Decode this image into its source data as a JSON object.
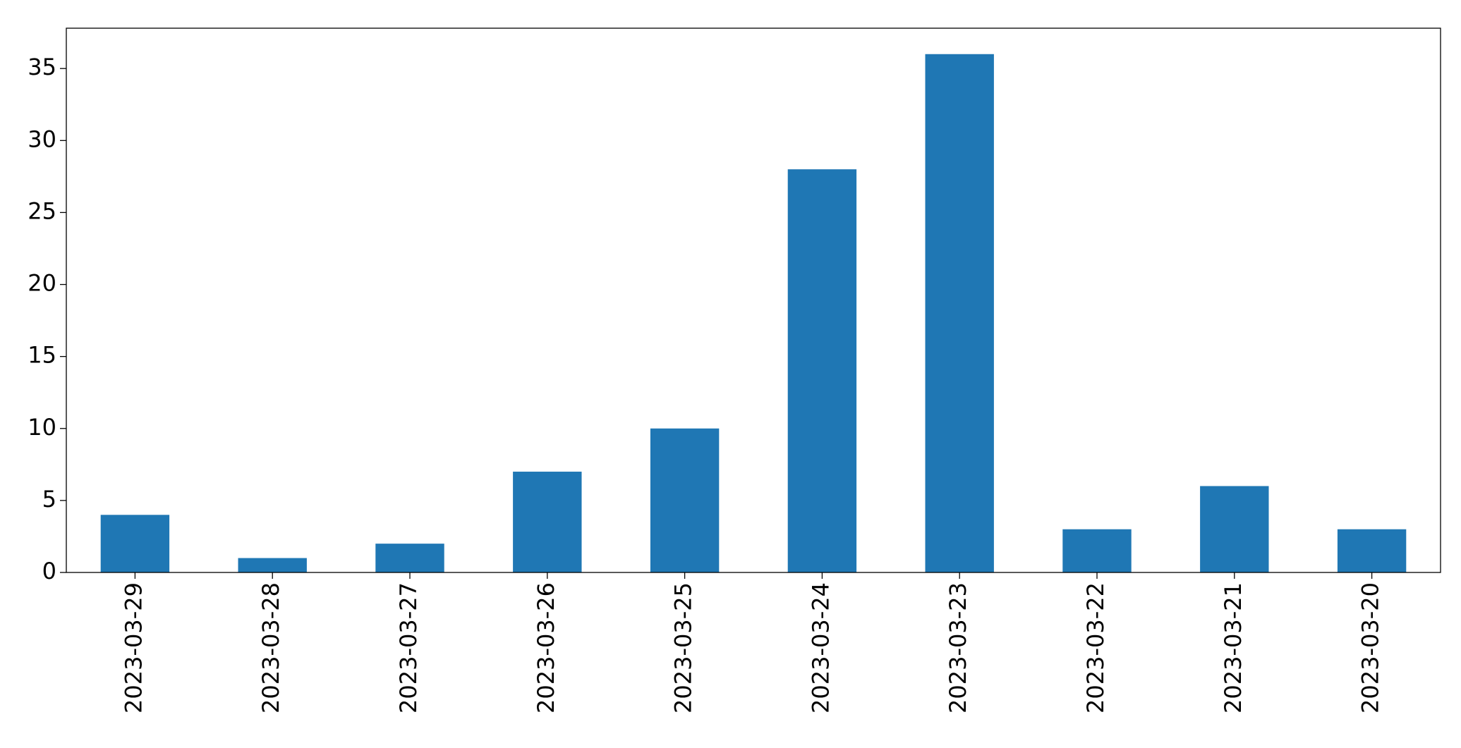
{
  "chart_data": {
    "type": "bar",
    "categories": [
      "2023-03-29",
      "2023-03-28",
      "2023-03-27",
      "2023-03-26",
      "2023-03-25",
      "2023-03-24",
      "2023-03-23",
      "2023-03-22",
      "2023-03-21",
      "2023-03-20"
    ],
    "values": [
      4,
      1,
      2,
      7,
      10,
      28,
      36,
      3,
      6,
      3
    ],
    "color": "#1f77b4",
    "ylim": [
      0,
      37.8
    ],
    "yticks": [
      0,
      5,
      10,
      15,
      20,
      25,
      30,
      35
    ],
    "grid": false
  }
}
